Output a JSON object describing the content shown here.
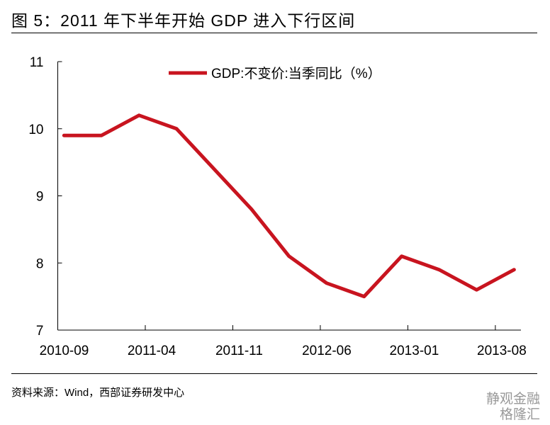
{
  "title": "图 5：2011 年下半年开始 GDP 进入下行区间",
  "source": "资料来源：Wind，西部证券研发中心",
  "watermark": {
    "line1": "静观金融",
    "line2": "格隆汇"
  },
  "chart_data": {
    "type": "line",
    "title": "",
    "xlabel": "",
    "ylabel": "",
    "ylim": [
      7,
      11
    ],
    "yticks": [
      "7",
      "8",
      "9",
      "10",
      "11"
    ],
    "xticks": [
      "2010-09",
      "2011-04",
      "2011-11",
      "2012-06",
      "2013-01",
      "2013-08"
    ],
    "legend": {
      "position": "top",
      "label": "GDP:不变价:当季同比（%）"
    },
    "color": "#C8141F",
    "series": [
      {
        "name": "GDP:不变价:当季同比（%）",
        "x": [
          "2010-09",
          "2010-12",
          "2011-03",
          "2011-06",
          "2011-09",
          "2011-12",
          "2012-03",
          "2012-06",
          "2012-09",
          "2012-12",
          "2013-03",
          "2013-06",
          "2013-09"
        ],
        "values": [
          9.9,
          9.9,
          10.2,
          10.0,
          9.4,
          8.8,
          8.1,
          7.7,
          7.5,
          8.1,
          7.9,
          7.6,
          7.9
        ]
      }
    ]
  }
}
